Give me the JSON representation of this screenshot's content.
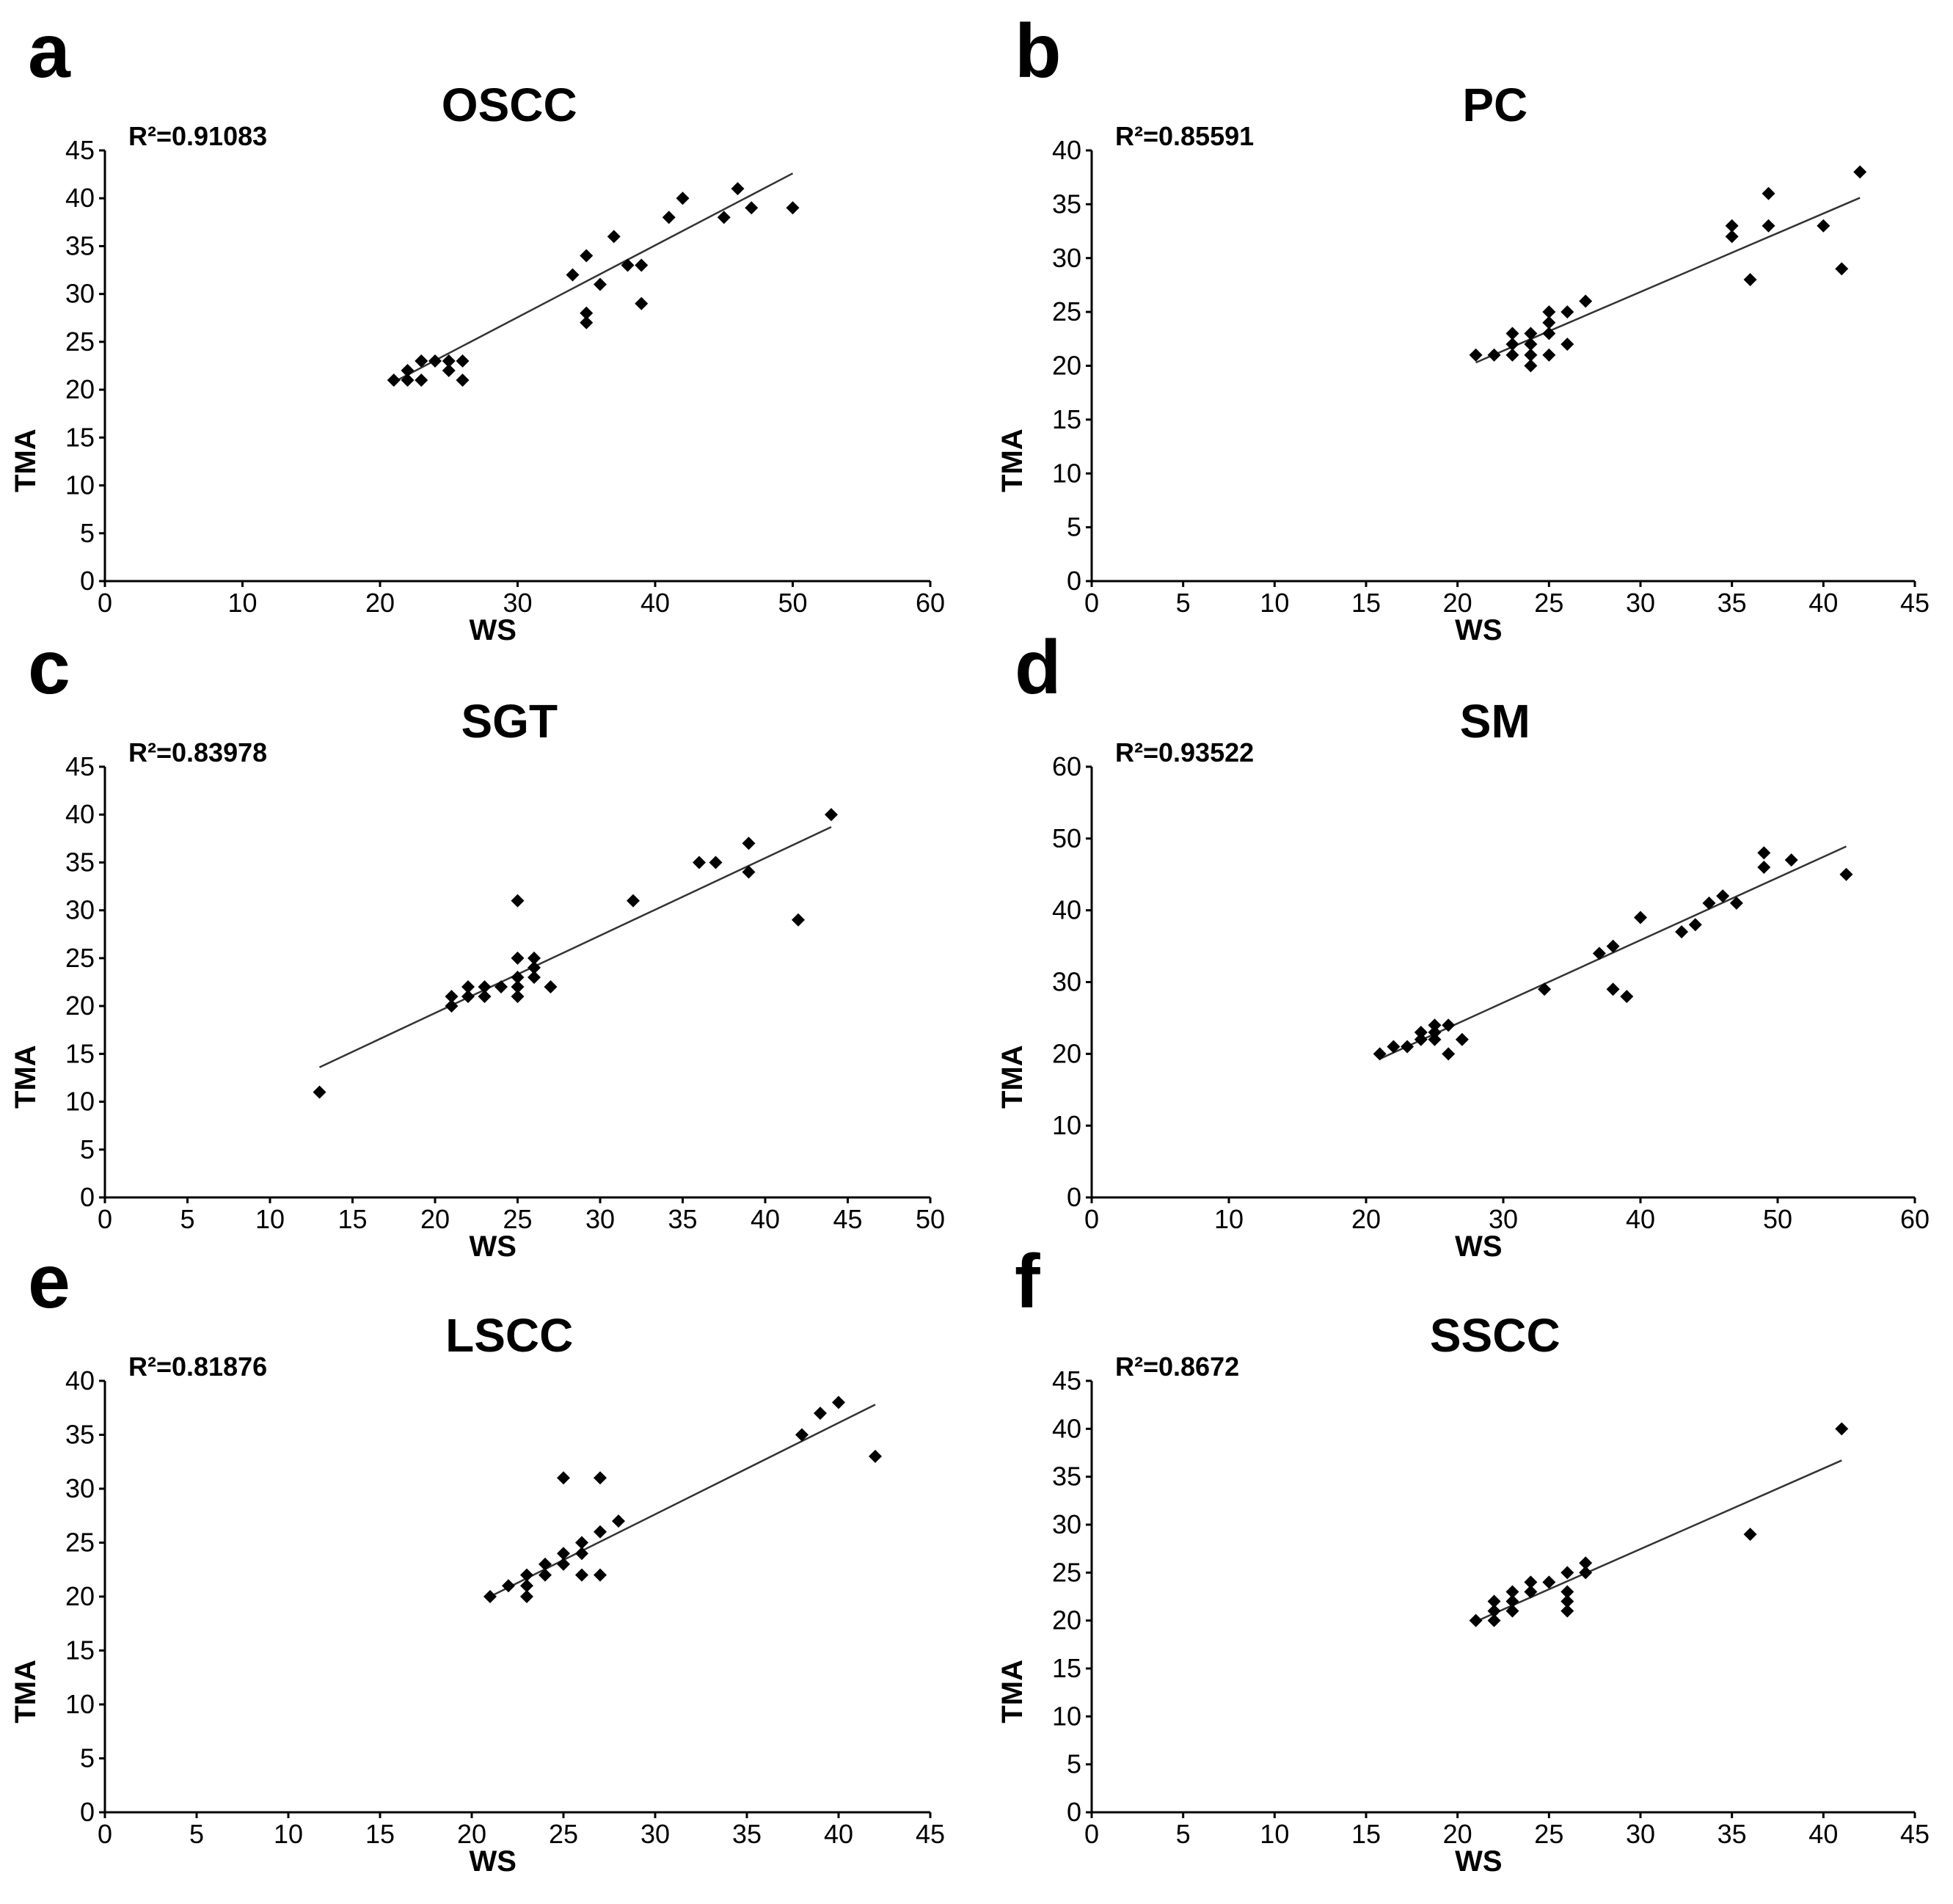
{
  "chart_data": [
    {
      "type": "scatter",
      "panel": "a",
      "title": "OSCC",
      "annotation": "R²=0.91083",
      "xlabel": "WS",
      "ylabel": "TMA",
      "xlim": [
        0,
        60
      ],
      "ylim": [
        0,
        45
      ],
      "xticks": [
        0,
        10,
        20,
        30,
        40,
        50,
        60
      ],
      "yticks": [
        0,
        5,
        10,
        15,
        20,
        25,
        30,
        35,
        40,
        45
      ],
      "points": [
        [
          21,
          21
        ],
        [
          22,
          21
        ],
        [
          22,
          22
        ],
        [
          23,
          21
        ],
        [
          23,
          23
        ],
        [
          24,
          23
        ],
        [
          25,
          22
        ],
        [
          25,
          23
        ],
        [
          26,
          21
        ],
        [
          26,
          23
        ],
        [
          34,
          32
        ],
        [
          35,
          27
        ],
        [
          35,
          28
        ],
        [
          35,
          34
        ],
        [
          36,
          31
        ],
        [
          37,
          36
        ],
        [
          38,
          33
        ],
        [
          39,
          29
        ],
        [
          39,
          33
        ],
        [
          41,
          38
        ],
        [
          42,
          40
        ],
        [
          45,
          38
        ],
        [
          46,
          41
        ],
        [
          47,
          39
        ],
        [
          50,
          39
        ]
      ],
      "trendline": [
        [
          21,
          20.8
        ],
        [
          50,
          42.6
        ]
      ]
    },
    {
      "type": "scatter",
      "panel": "b",
      "title": "PC",
      "annotation": "R²=0.85591",
      "xlabel": "WS",
      "ylabel": "TMA",
      "xlim": [
        0,
        45
      ],
      "ylim": [
        0,
        40
      ],
      "xticks": [
        0,
        5,
        10,
        15,
        20,
        25,
        30,
        35,
        40,
        45
      ],
      "yticks": [
        0,
        5,
        10,
        15,
        20,
        25,
        30,
        35,
        40
      ],
      "points": [
        [
          21,
          21
        ],
        [
          22,
          21
        ],
        [
          23,
          21
        ],
        [
          23,
          22
        ],
        [
          23,
          23
        ],
        [
          24,
          20
        ],
        [
          24,
          21
        ],
        [
          24,
          22
        ],
        [
          24,
          23
        ],
        [
          25,
          21
        ],
        [
          25,
          23
        ],
        [
          25,
          24
        ],
        [
          25,
          25
        ],
        [
          26,
          22
        ],
        [
          26,
          25
        ],
        [
          27,
          26
        ],
        [
          35,
          32
        ],
        [
          35,
          33
        ],
        [
          36,
          28
        ],
        [
          37,
          33
        ],
        [
          37,
          36
        ],
        [
          40,
          33
        ],
        [
          41,
          29
        ],
        [
          42,
          38
        ]
      ],
      "trendline": [
        [
          21,
          20.3
        ],
        [
          42,
          35.6
        ]
      ]
    },
    {
      "type": "scatter",
      "panel": "c",
      "title": "SGT",
      "annotation": "R²=0.83978",
      "xlabel": "WS",
      "ylabel": "TMA",
      "xlim": [
        0,
        50
      ],
      "ylim": [
        0,
        45
      ],
      "xticks": [
        0,
        5,
        10,
        15,
        20,
        25,
        30,
        35,
        40,
        45,
        50
      ],
      "yticks": [
        0,
        5,
        10,
        15,
        20,
        25,
        30,
        35,
        40,
        45
      ],
      "points": [
        [
          13,
          11
        ],
        [
          21,
          20
        ],
        [
          21,
          21
        ],
        [
          22,
          21
        ],
        [
          22,
          22
        ],
        [
          23,
          21
        ],
        [
          23,
          22
        ],
        [
          24,
          22
        ],
        [
          25,
          21
        ],
        [
          25,
          22
        ],
        [
          25,
          23
        ],
        [
          25,
          25
        ],
        [
          25,
          31
        ],
        [
          26,
          23
        ],
        [
          26,
          24
        ],
        [
          26,
          25
        ],
        [
          27,
          22
        ],
        [
          32,
          31
        ],
        [
          36,
          35
        ],
        [
          37,
          35
        ],
        [
          39,
          34
        ],
        [
          39,
          37
        ],
        [
          42,
          29
        ],
        [
          44,
          40
        ]
      ],
      "trendline": [
        [
          13,
          13.6
        ],
        [
          44,
          38.7
        ]
      ]
    },
    {
      "type": "scatter",
      "panel": "d",
      "title": "SM",
      "annotation": "R²=0.93522",
      "xlabel": "WS",
      "ylabel": "TMA",
      "xlim": [
        0,
        60
      ],
      "ylim": [
        0,
        60
      ],
      "xticks": [
        0,
        10,
        20,
        30,
        40,
        50,
        60
      ],
      "yticks": [
        0,
        10,
        20,
        30,
        40,
        50,
        60
      ],
      "points": [
        [
          21,
          20
        ],
        [
          22,
          21
        ],
        [
          23,
          21
        ],
        [
          24,
          22
        ],
        [
          24,
          23
        ],
        [
          25,
          22
        ],
        [
          25,
          23
        ],
        [
          25,
          24
        ],
        [
          26,
          20
        ],
        [
          26,
          24
        ],
        [
          27,
          22
        ],
        [
          33,
          29
        ],
        [
          37,
          34
        ],
        [
          38,
          29
        ],
        [
          38,
          35
        ],
        [
          39,
          28
        ],
        [
          40,
          39
        ],
        [
          43,
          37
        ],
        [
          44,
          38
        ],
        [
          45,
          41
        ],
        [
          46,
          42
        ],
        [
          47,
          41
        ],
        [
          49,
          46
        ],
        [
          49,
          48
        ],
        [
          51,
          47
        ],
        [
          55,
          45
        ]
      ],
      "trendline": [
        [
          21,
          19.3
        ],
        [
          55,
          48.9
        ]
      ]
    },
    {
      "type": "scatter",
      "panel": "e",
      "title": "LSCC",
      "annotation": "R²=0.81876",
      "xlabel": "WS",
      "ylabel": "TMA",
      "xlim": [
        0,
        45
      ],
      "ylim": [
        0,
        40
      ],
      "xticks": [
        0,
        5,
        10,
        15,
        20,
        25,
        30,
        35,
        40,
        45
      ],
      "yticks": [
        0,
        5,
        10,
        15,
        20,
        25,
        30,
        35,
        40
      ],
      "points": [
        [
          21,
          20
        ],
        [
          22,
          21
        ],
        [
          23,
          20
        ],
        [
          23,
          21
        ],
        [
          23,
          22
        ],
        [
          24,
          22
        ],
        [
          24,
          23
        ],
        [
          25,
          23
        ],
        [
          25,
          24
        ],
        [
          25,
          31
        ],
        [
          26,
          22
        ],
        [
          26,
          24
        ],
        [
          26,
          25
        ],
        [
          27,
          22
        ],
        [
          27,
          26
        ],
        [
          27,
          31
        ],
        [
          28,
          27
        ],
        [
          38,
          35
        ],
        [
          39,
          37
        ],
        [
          40,
          38
        ],
        [
          42,
          33
        ]
      ],
      "trendline": [
        [
          21,
          20.0
        ],
        [
          42,
          37.8
        ]
      ]
    },
    {
      "type": "scatter",
      "panel": "f",
      "title": "SSCC",
      "annotation": "R²=0.8672",
      "xlabel": "WS",
      "ylabel": "TMA",
      "xlim": [
        0,
        45
      ],
      "ylim": [
        0,
        45
      ],
      "xticks": [
        0,
        5,
        10,
        15,
        20,
        25,
        30,
        35,
        40,
        45
      ],
      "yticks": [
        0,
        5,
        10,
        15,
        20,
        25,
        30,
        35,
        40,
        45
      ],
      "points": [
        [
          21,
          20
        ],
        [
          22,
          20
        ],
        [
          22,
          21
        ],
        [
          22,
          22
        ],
        [
          23,
          21
        ],
        [
          23,
          22
        ],
        [
          23,
          23
        ],
        [
          24,
          23
        ],
        [
          24,
          24
        ],
        [
          25,
          24
        ],
        [
          26,
          21
        ],
        [
          26,
          22
        ],
        [
          26,
          23
        ],
        [
          26,
          25
        ],
        [
          27,
          25
        ],
        [
          27,
          26
        ],
        [
          36,
          29
        ],
        [
          41,
          40
        ]
      ],
      "trendline": [
        [
          21,
          19.9
        ],
        [
          41,
          36.7
        ]
      ]
    }
  ]
}
